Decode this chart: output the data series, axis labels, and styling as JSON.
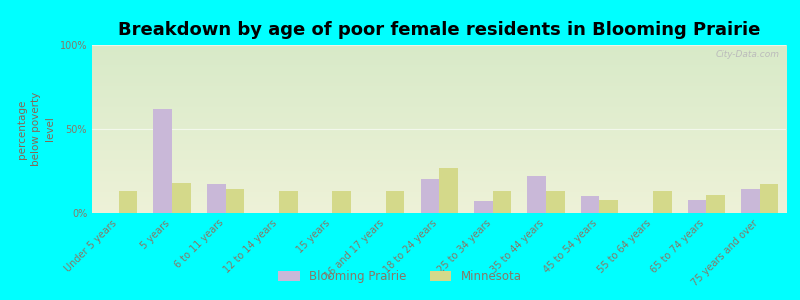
{
  "title": "Breakdown by age of poor female residents in Blooming Prairie",
  "ylabel": "percentage\nbelow poverty\nlevel",
  "categories": [
    "Under 5 years",
    "5 years",
    "6 to 11 years",
    "12 to 14 years",
    "15 years",
    "16 and 17 years",
    "18 to 24 years",
    "25 to 34 years",
    "35 to 44 years",
    "45 to 54 years",
    "55 to 64 years",
    "65 to 74 years",
    "75 years and over"
  ],
  "blooming_prairie": [
    0,
    62,
    17,
    0,
    0,
    0,
    20,
    7,
    22,
    10,
    0,
    8,
    14
  ],
  "minnesota": [
    13,
    18,
    14,
    13,
    13,
    13,
    27,
    13,
    13,
    8,
    13,
    11,
    17
  ],
  "bp_color": "#c9b8d8",
  "mn_color": "#d4d98a",
  "outer_bg": "#00ffff",
  "plot_bg_top": "#d8eac8",
  "plot_bg_bottom": "#eef2d8",
  "ylim": [
    0,
    100
  ],
  "yticks": [
    0,
    50,
    100
  ],
  "ytick_labels": [
    "0%",
    "50%",
    "100%"
  ],
  "title_fontsize": 13,
  "ylabel_fontsize": 7.5,
  "tick_fontsize": 7,
  "ylabel_color": "#886655",
  "tick_color": "#887766",
  "legend_labels": [
    "Blooming Prairie",
    "Minnesota"
  ],
  "bar_width": 0.35,
  "watermark": "City-Data.com"
}
